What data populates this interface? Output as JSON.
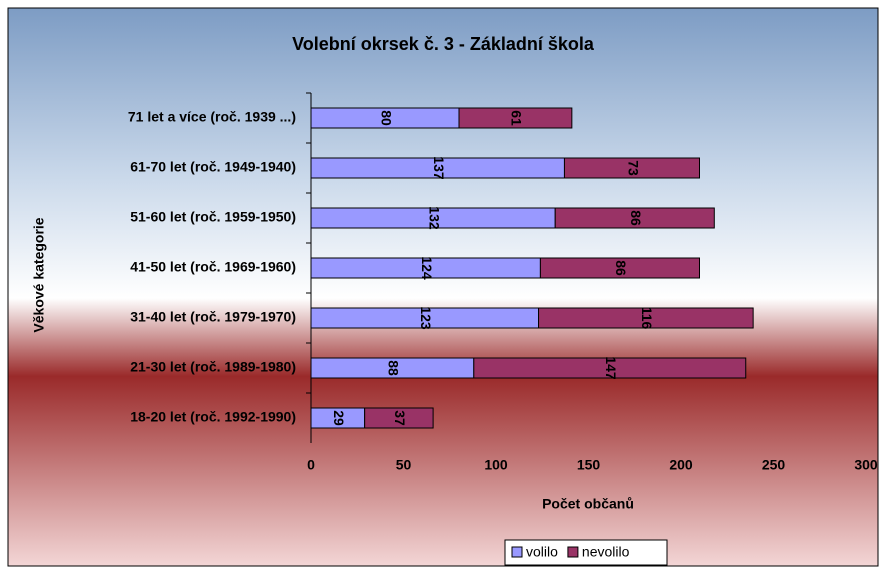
{
  "chart_data": {
    "type": "stacked_barh",
    "title": "Volební okrsek č. 3 - Základní škola",
    "x_label": "Počet občanů",
    "y_label": "Věkové kategorie",
    "categories": [
      "71 let a více (roč. 1939 ...)",
      "61-70 let (roč. 1949-1940)",
      "51-60 let (roč. 1959-1950)",
      "41-50 let (roč. 1969-1960)",
      "31-40 let (roč. 1979-1970)",
      "21-30 let (roč. 1989-1980)",
      "18-20 let (roč. 1992-1990)"
    ],
    "series": [
      {
        "name": "volilo",
        "color": "#9999ff",
        "label_color": "#000000",
        "values": [
          80,
          137,
          132,
          124,
          123,
          88,
          29
        ]
      },
      {
        "name": "nevolilo",
        "color": "#993366",
        "label_color": "#ffffff",
        "values": [
          61,
          73,
          86,
          86,
          116,
          147,
          37
        ]
      }
    ],
    "xlim": [
      0,
      300
    ],
    "xticks": [
      0,
      50,
      100,
      150,
      200,
      250,
      300
    ],
    "grid": false,
    "legend": "bottom"
  }
}
